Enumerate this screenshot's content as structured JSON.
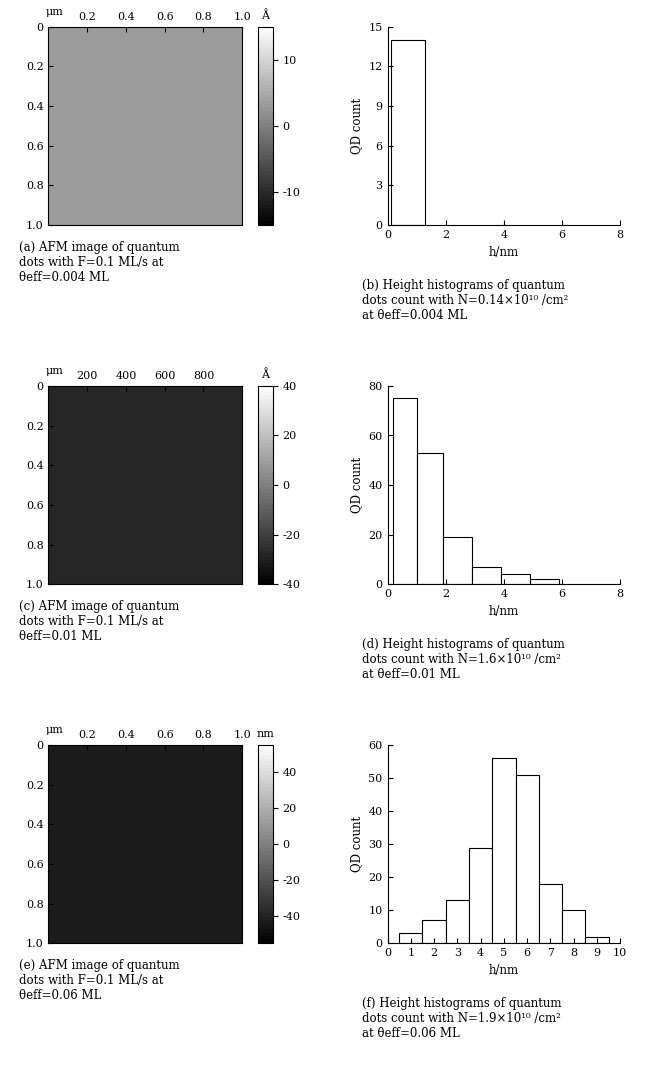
{
  "chart_data": [
    {
      "type": "image",
      "caption": "(a) AFM image of quantum\ndots with F=0.1 ML/s at\nθeff=0.004 ML",
      "x_unit": "μm",
      "xlim": [
        0,
        1.0
      ],
      "xticks": [
        0.2,
        0.4,
        0.6,
        0.8,
        1.0
      ],
      "ylim": [
        1.0,
        0
      ],
      "yticks": [
        0,
        0.2,
        0.4,
        0.6,
        0.8,
        1.0
      ],
      "color": "#9c9c9c",
      "colorbar": {
        "range": [
          -15,
          15
        ],
        "ticks": [
          -10,
          0,
          10
        ],
        "unit": "Å"
      }
    },
    {
      "type": "histogram",
      "caption": "(b) Height histograms of quantum\ndots count with N=0.14×10¹⁰ /cm²\nat θeff=0.004 ML",
      "x_label": "h/nm",
      "y_label": "QD count",
      "bins": [
        0.1,
        1.3
      ],
      "counts": [
        14
      ],
      "xlim": [
        0,
        8
      ],
      "xticks": [
        0,
        2,
        4,
        6,
        8
      ],
      "ylim": [
        0,
        15
      ],
      "yticks": [
        0,
        3,
        6,
        9,
        12,
        15
      ],
      "color": "#ffffff"
    },
    {
      "type": "image",
      "caption": "(c) AFM image of quantum\ndots with F=0.1 ML/s at\nθeff=0.01 ML",
      "x_unit": "μm",
      "xlim": [
        0,
        1000
      ],
      "xticks": [
        200,
        400,
        600,
        800
      ],
      "ylim": [
        1.0,
        0
      ],
      "yticks": [
        0,
        0.2,
        0.4,
        0.6,
        0.8,
        1.0
      ],
      "color": "#262626",
      "colorbar": {
        "range": [
          -40,
          40
        ],
        "ticks": [
          -40,
          -20,
          0,
          20,
          40
        ],
        "unit": "Å"
      }
    },
    {
      "type": "histogram",
      "caption": "(d) Height histograms of quantum\ndots count with N=1.6×10¹⁰ /cm²\nat θeff=0.01 ML",
      "x_label": "h/nm",
      "y_label": "QD count",
      "bins": [
        0.2,
        1.0,
        1.9,
        2.9,
        3.9,
        4.9,
        5.9
      ],
      "counts": [
        75,
        53,
        19,
        7,
        4,
        2
      ],
      "xlim": [
        0,
        8
      ],
      "xticks": [
        0,
        2,
        4,
        6,
        8
      ],
      "ylim": [
        0,
        80
      ],
      "yticks": [
        0,
        20,
        40,
        60,
        80
      ],
      "color": "#ffffff"
    },
    {
      "type": "image",
      "caption": "(e) AFM image of quantum\ndots with F=0.1 ML/s at\nθeff=0.06 ML",
      "x_unit": "μm",
      "xlim": [
        0,
        1.0
      ],
      "xticks": [
        0.2,
        0.4,
        0.6,
        0.8,
        1.0
      ],
      "ylim": [
        1.0,
        0
      ],
      "yticks": [
        0,
        0.2,
        0.4,
        0.6,
        0.8,
        1.0
      ],
      "color": "#1c1c1c",
      "colorbar": {
        "range": [
          -55,
          55
        ],
        "ticks": [
          -40,
          -20,
          0,
          20,
          40
        ],
        "unit": "nm"
      }
    },
    {
      "type": "histogram",
      "caption": "(f) Height histograms of quantum\ndots count with N=1.9×10¹⁰ /cm²\nat θeff=0.06 ML",
      "x_label": "h/nm",
      "y_label": "QD count",
      "bins": [
        0.5,
        1.5,
        2.5,
        3.5,
        4.5,
        5.5,
        6.5,
        7.5,
        8.5,
        9.5
      ],
      "counts": [
        3,
        7,
        13,
        29,
        56,
        51,
        18,
        10,
        2
      ],
      "xlim": [
        0,
        10
      ],
      "xticks": [
        0,
        1,
        2,
        3,
        4,
        5,
        6,
        7,
        8,
        9,
        10
      ],
      "ylim": [
        0,
        60
      ],
      "yticks": [
        0,
        10,
        20,
        30,
        40,
        50,
        60
      ],
      "color": "#ffffff"
    }
  ]
}
